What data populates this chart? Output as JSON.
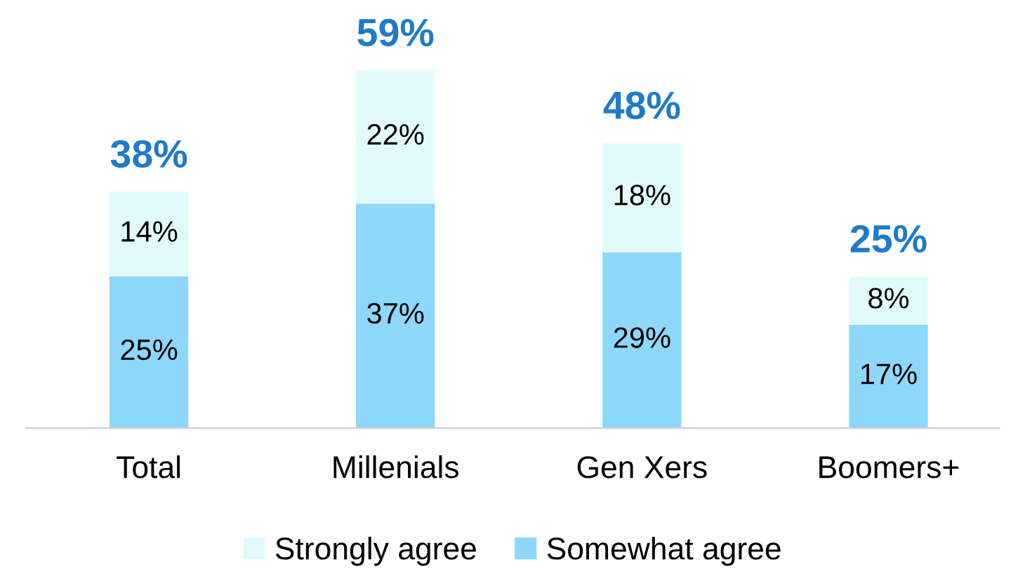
{
  "chart_data": {
    "type": "bar",
    "stacked": true,
    "categories": [
      "Total",
      "Millenials",
      "Gen Xers",
      "Boomers+"
    ],
    "series": [
      {
        "name": "Somewhat agree",
        "color": "#8dd7fb",
        "values": [
          25,
          37,
          29,
          17
        ],
        "value_labels": [
          "25%",
          "37%",
          "29%",
          "17%"
        ]
      },
      {
        "name": "Strongly agree",
        "color": "#e1fbfd",
        "values": [
          14,
          22,
          18,
          8
        ],
        "value_labels": [
          "14%",
          "22%",
          "18%",
          "8%"
        ]
      }
    ],
    "totals": [
      "38%",
      "59%",
      "48%",
      "25%"
    ],
    "legend": "bottom",
    "grid": false
  }
}
